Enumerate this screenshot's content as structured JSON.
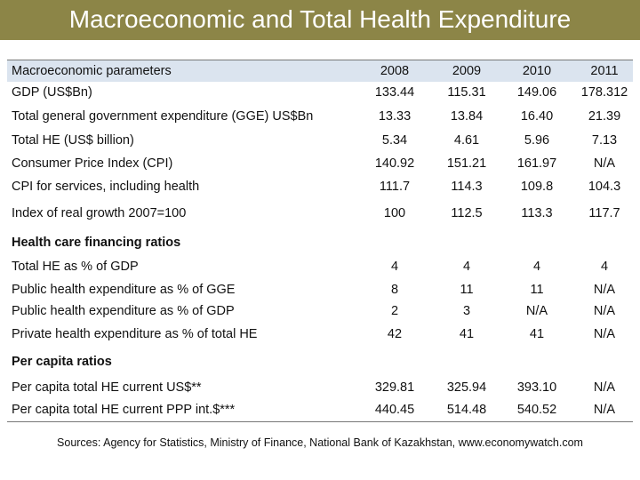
{
  "title": "Macroeconomic and Total Health Expenditure",
  "table": {
    "header": {
      "label": "Macroeconomic parameters",
      "years": [
        "2008",
        "2009",
        "2010",
        "2011"
      ]
    },
    "rows": [
      {
        "label": "GDP (US$Bn)",
        "values": [
          "133.44",
          "115.31",
          "149.06",
          "178.312"
        ]
      },
      {
        "label": "Total general government expenditure (GGE) US$Bn",
        "values": [
          "13.33",
          "13.84",
          "16.40",
          "21.39"
        ]
      },
      {
        "label": "Total HE (US$ billion)",
        "values": [
          "5.34",
          "4.61",
          "5.96",
          "7.13"
        ]
      },
      {
        "label": "Consumer Price Index (CPI)",
        "values": [
          "140.92",
          "151.21",
          "161.97",
          "N/A"
        ]
      },
      {
        "label": "CPI for services, including health",
        "values": [
          "111.7",
          "114.3",
          "109.8",
          "104.3"
        ]
      },
      {
        "label": "Index of real growth 2007=100",
        "values": [
          "100",
          "112.5",
          "113.3",
          "117.7"
        ]
      },
      {
        "label": "Health care financing ratios",
        "section": true
      },
      {
        "label": "Total HE as % of GDP",
        "values": [
          "4",
          "4",
          "4",
          "4"
        ]
      },
      {
        "label": "Public health expenditure as % of GGE",
        "values": [
          "8",
          "11",
          "11",
          "N/A"
        ]
      },
      {
        "label": "Public health expenditure as % of GDP",
        "values": [
          "2",
          "3",
          "N/A",
          "N/A"
        ]
      },
      {
        "label": "Private health expenditure as % of total HE",
        "values": [
          "42",
          "41",
          "41",
          "N/A"
        ]
      },
      {
        "label": "Per capita ratios",
        "section": true
      },
      {
        "label": "Per capita total HE current US$**",
        "values": [
          "329.81",
          "325.94",
          "393.10",
          "N/A"
        ]
      },
      {
        "label": "Per capita total HE current PPP int.$***",
        "values": [
          "440.45",
          "514.48",
          "540.52",
          "N/A"
        ]
      }
    ]
  },
  "sources": "Sources: Agency for Statistics, Ministry of Finance, National Bank of Kazakhstan, www.economywatch.com"
}
